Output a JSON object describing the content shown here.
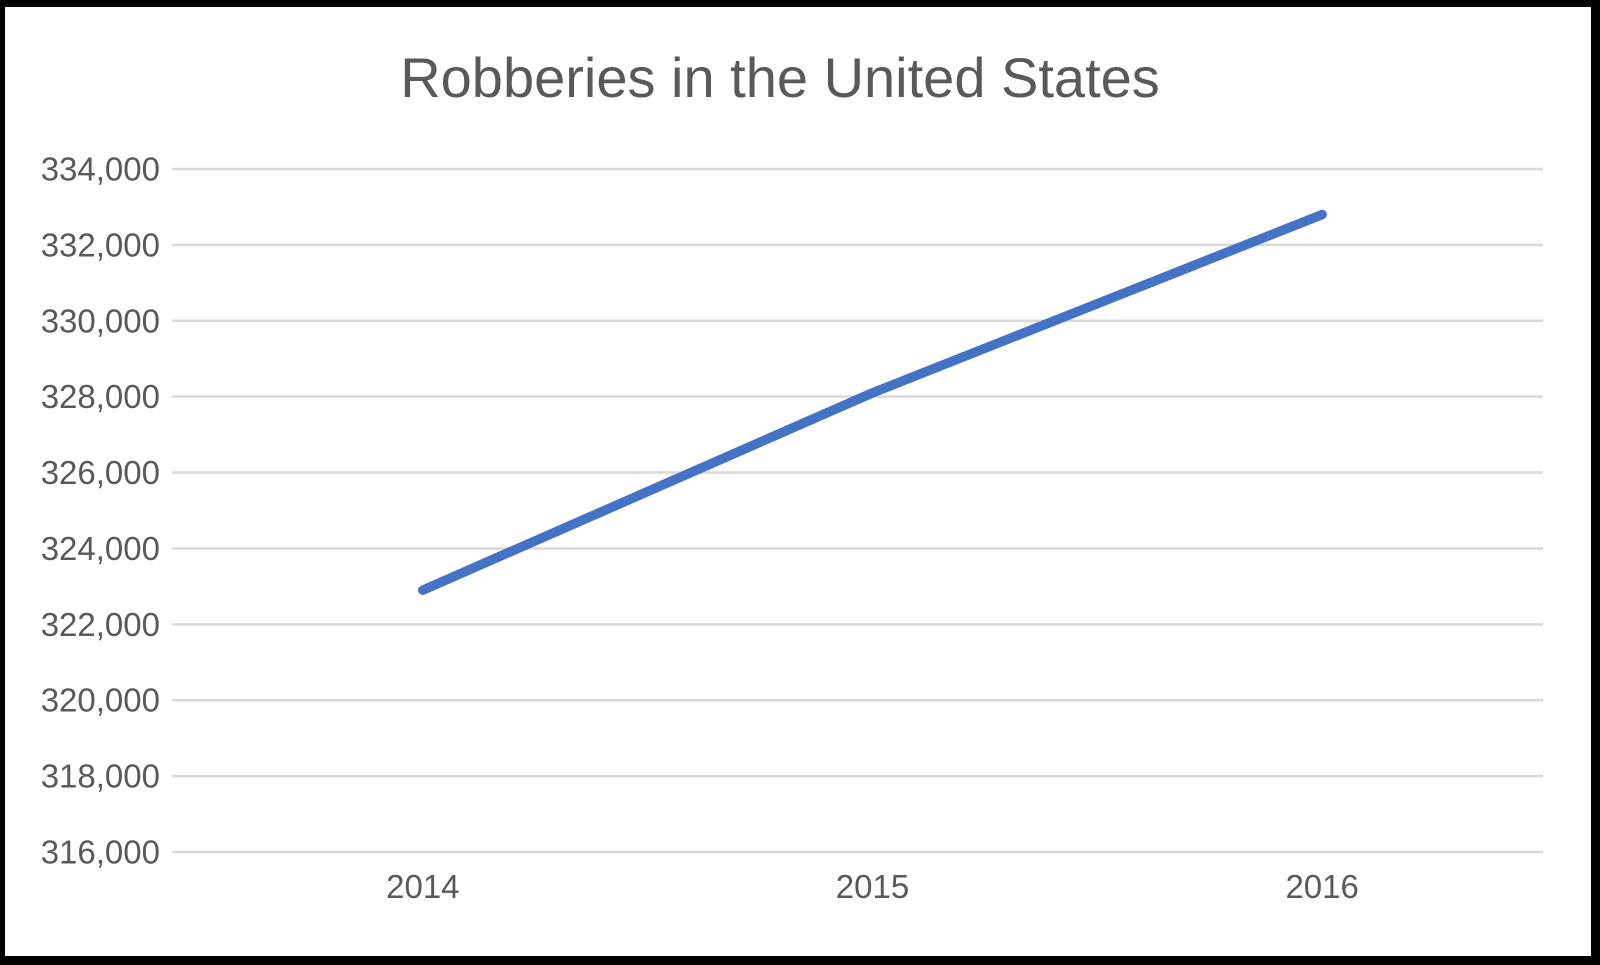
{
  "window": {
    "background": "#FFFFFF",
    "border_color": "#000000"
  },
  "chart_data": {
    "type": "line",
    "title": "Robberies in the United States",
    "categories": [
      "2014",
      "2015",
      "2016"
    ],
    "series": [
      {
        "name": "Robberies",
        "color": "#4472C4",
        "values": [
          322900,
          328100,
          332800
        ]
      }
    ],
    "xlabel": "",
    "ylabel": "",
    "ylim": [
      316000,
      334000
    ],
    "ytick_step": 2000,
    "ytick_labels": [
      "316,000",
      "318,000",
      "320,000",
      "322,000",
      "324,000",
      "326,000",
      "328,000",
      "330,000",
      "332,000",
      "334,000"
    ],
    "grid": "horizontal-only",
    "legend_position": "none",
    "marker": "none",
    "gridline_color": "#D9D9D9",
    "axis_text_color": "#595959",
    "title_color": "#595959"
  }
}
